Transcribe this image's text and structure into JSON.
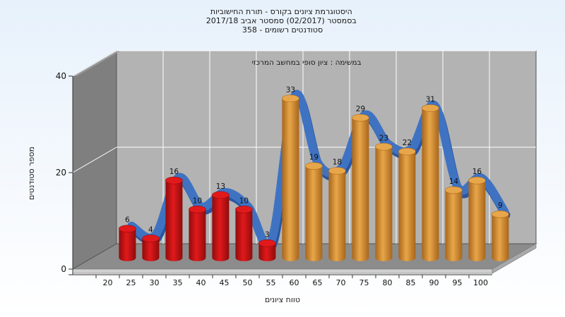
{
  "chart_data": {
    "type": "bar",
    "title_lines": [
      "היסטוגרמת ציונים בקורס - תורת החישוביות",
      "בסמסטר  (02/2017)  סמסטר אביב 2017/18",
      "סטודנטים רשומים - 358"
    ],
    "annotation": "במשימה : ציון סופי במחשב המרכזי",
    "xlabel": "טווח ציונים",
    "ylabel": "מספר סטודנטים",
    "x_ticks": [
      "20",
      "25",
      "30",
      "35",
      "40",
      "45",
      "50",
      "55",
      "60",
      "65",
      "70",
      "75",
      "80",
      "85",
      "90",
      "95",
      "100"
    ],
    "y_ticks": [
      "0",
      "20",
      "40"
    ],
    "ylim": [
      0,
      40
    ],
    "categories": [
      "20",
      "25",
      "30",
      "35",
      "40",
      "45",
      "50",
      "55",
      "60",
      "65",
      "70",
      "75",
      "80",
      "85",
      "90",
      "95",
      "100"
    ],
    "values": [
      6,
      4,
      16,
      10,
      13,
      10,
      3,
      33,
      19,
      18,
      29,
      23,
      22,
      31,
      14,
      16,
      9
    ],
    "fail_threshold": "55",
    "grid": true,
    "legend": "none",
    "colors": {
      "fail_bar": "#e2191b",
      "fail_bar_dark": "#8f0c0c",
      "pass_bar": "#e8a64a",
      "pass_bar_dark": "#a8661a",
      "curve": "#3f73c2",
      "curve_dark": "#2a559e",
      "back_wall": "#b3b3b3",
      "side_wall": "#7f7f7f",
      "floor": "#8c8c8c",
      "background_top": "#e7f1fb",
      "background_bottom": "#ffffff"
    }
  }
}
